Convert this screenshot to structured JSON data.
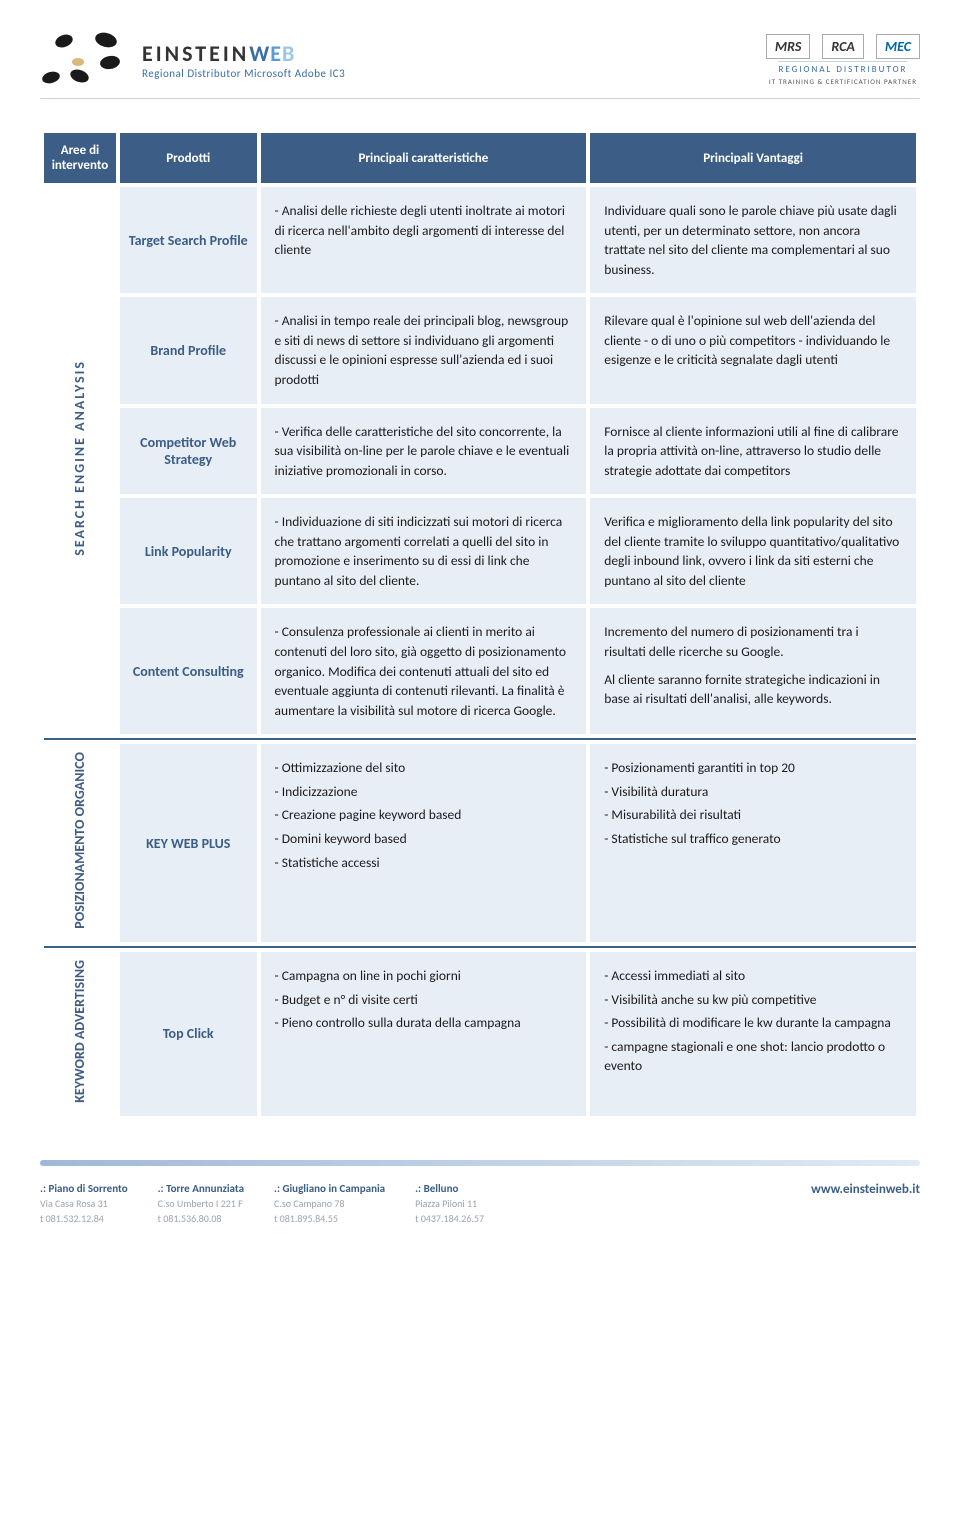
{
  "header": {
    "brand_main": "EINSTEIN",
    "brand_w": "W",
    "brand_e": "E",
    "brand_b": "B",
    "brand_sub": "Regional Distributor Microsoft Adobe IC3",
    "partner1": "MRS",
    "partner2": "RCA",
    "partner3": "MEC",
    "rd_text": "REGIONAL DISTRIBUTOR",
    "rd_sub": "IT TRAINING & CERTIFICATION PARTNER"
  },
  "columns": {
    "area": "Aree di intervento",
    "prodotti": "Prodotti",
    "caratteristiche": "Principali caratteristiche",
    "vantaggi": "Principali  Vantaggi"
  },
  "sections": [
    {
      "area_label": "SEARCH  ENGINE  ANALYSIS",
      "rows": [
        {
          "product": "Target Search Profile",
          "char": "- Analisi delle richieste degli utenti inoltrate ai motori di ricerca nell'ambito degli argomenti di interesse del cliente",
          "adv": "Individuare quali sono le parole chiave più usate dagli utenti, per un determinato settore, non ancora trattate nel sito del cliente ma complementari al suo business."
        },
        {
          "product": "Brand Profile",
          "char": "- Analisi in tempo reale dei principali blog, newsgroup e siti di news di settore si individuano gli argomenti discussi e le opinioni espresse sull'azienda ed i suoi prodotti",
          "adv": "Rilevare qual è l'opinione sul web dell'azienda del cliente - o di uno o più competitors - individuando le esigenze e le criticità segnalate dagli utenti"
        },
        {
          "product": "Competitor Web Strategy",
          "char": "- Verifica delle caratteristiche del sito concorrente, la sua visibilità on-line per le parole chiave e le eventuali iniziative promozionali in corso.",
          "adv": "Fornisce al cliente informazioni utili al fine di calibrare la propria attività on-line, attraverso lo studio delle strategie adottate dai competitors"
        },
        {
          "product": "Link Popularity",
          "char": "- Individuazione di siti indicizzati sui motori di ricerca che trattano argomenti correlati a quelli del sito in promozione e inserimento su di essi di link che puntano al sito del cliente.",
          "adv": "Verifica e miglioramento della link popularity del sito del cliente tramite lo sviluppo quantitativo/qualitativo degli inbound link, ovvero i link da siti esterni che puntano al sito del cliente"
        },
        {
          "product": "Content Consulting",
          "char": "-  Consulenza professionale ai clienti in merito ai contenuti del loro sito, già oggetto di posizionamento organico. Modifica dei contenuti attuali del sito ed eventuale aggiunta di contenuti rilevanti. La finalità è aumentare la visibilità sul motore di ricerca Google.",
          "adv": "Incremento del numero di posizionamenti tra i risultati delle ricerche su Google.",
          "adv2": "Al cliente saranno fornite strategiche indicazioni in base ai risultati dell'analisi, alle keywords."
        }
      ]
    },
    {
      "area_label": "POSIZIONAMENTO ORGANICO",
      "rows": [
        {
          "product": "KEY WEB PLUS",
          "char_lines": [
            "- Ottimizzazione del sito",
            "- Indicizzazione",
            "- Creazione pagine keyword based",
            "- Domini keyword based",
            "- Statistiche accessi"
          ],
          "adv_lines": [
            "- Posizionamenti garantiti in top 20",
            "- Visibilità duratura",
            "- Misurabilità dei risultati",
            "- Statistiche sul traffico generato"
          ]
        }
      ]
    },
    {
      "area_label": "KEYWORD ADVERTISING",
      "rows": [
        {
          "product": "Top Click",
          "char_lines": [
            "- Campagna on line in pochi giorni",
            "- Budget e n° di visite certi",
            "- Pieno controllo sulla durata della campagna"
          ],
          "adv_lines": [
            "- Accessi immediati al sito",
            "- Visibilità anche su kw più competitive",
            "- Possibilità di modificare le kw durante la campagna",
            "- campagne stagionali e one shot: lancio prodotto o evento"
          ]
        }
      ]
    }
  ],
  "footer": {
    "locations": [
      {
        "title": ".: Piano di Sorrento",
        "addr": "Via Casa Rosa 31",
        "tel": "t  081.532.12.84"
      },
      {
        "title": ".: Torre Annunziata",
        "addr": "C.so Umberto I 221 F",
        "tel": "t  081.536.80.08"
      },
      {
        "title": ".: Giugliano in Campania",
        "addr": "C.so Campano 78",
        "tel": "t  081.895.84.55"
      },
      {
        "title": ".: Belluno",
        "addr": "Piazza Piloni 11",
        "tel": "t  0437.184.26.57"
      }
    ],
    "website": "www.einsteinweb.it"
  },
  "colors": {
    "header_bg": "#3b5d86",
    "cell_bg": "#e8eef5",
    "accent": "#3b5d86"
  }
}
